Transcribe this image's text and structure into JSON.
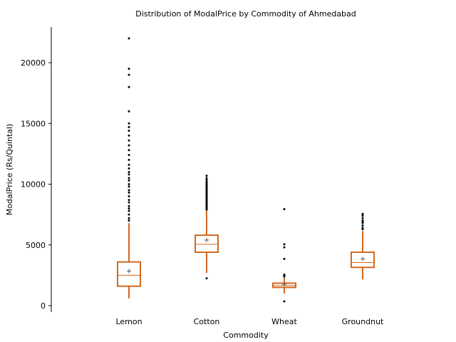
{
  "chart_data": {
    "type": "box",
    "title": "Distribution of ModalPrice by Commodity of Ahmedabad",
    "xlabel": "Commodity",
    "ylabel": "ModalPrice (Rs/Quintal)",
    "ylim": [
      -500,
      23000
    ],
    "yticks": [
      0,
      5000,
      10000,
      15000,
      20000
    ],
    "categories": [
      "Lemon",
      "Cotton",
      "Wheat",
      "Groundnut"
    ],
    "box_color": "#D2691E",
    "series": [
      {
        "category": "Lemon",
        "whisker_low": 600,
        "q1": 1600,
        "median": 2500,
        "q3": 3600,
        "whisker_high": 6800,
        "mean": 2850,
        "outliers": [
          7000,
          7200,
          7500,
          7800,
          8000,
          8200,
          8500,
          8700,
          9000,
          9300,
          9500,
          9800,
          10000,
          10300,
          10500,
          10800,
          11000,
          11300,
          11600,
          12000,
          12400,
          12800,
          13200,
          13600,
          14000,
          14400,
          14700,
          15000,
          16000,
          18000,
          19000,
          19500,
          22000
        ]
      },
      {
        "category": "Cotton",
        "whisker_low": 2700,
        "q1": 4400,
        "median": 5050,
        "q3": 5800,
        "whisker_high": 7800,
        "mean": 5400,
        "outliers": [
          2250,
          7900,
          8000,
          8100,
          8200,
          8300,
          8400,
          8500,
          8600,
          8700,
          8800,
          8900,
          9000,
          9100,
          9200,
          9300,
          9400,
          9500,
          9600,
          9700,
          9800,
          9900,
          10000,
          10100,
          10200,
          10350,
          10500,
          10700
        ]
      },
      {
        "category": "Wheat",
        "whisker_low": 1000,
        "q1": 1500,
        "median": 1650,
        "q3": 1850,
        "whisker_high": 2300,
        "mean": 1750,
        "outliers": [
          350,
          2400,
          2450,
          2500,
          2550,
          3850,
          4800,
          5050,
          7950
        ]
      },
      {
        "category": "Groundnut",
        "whisker_low": 2150,
        "q1": 3150,
        "median": 3550,
        "q3": 4400,
        "whisker_high": 6150,
        "mean": 3850,
        "outliers": [
          6300,
          6400,
          6600,
          6800,
          6900,
          7000,
          7200,
          7400,
          7550
        ]
      }
    ]
  }
}
